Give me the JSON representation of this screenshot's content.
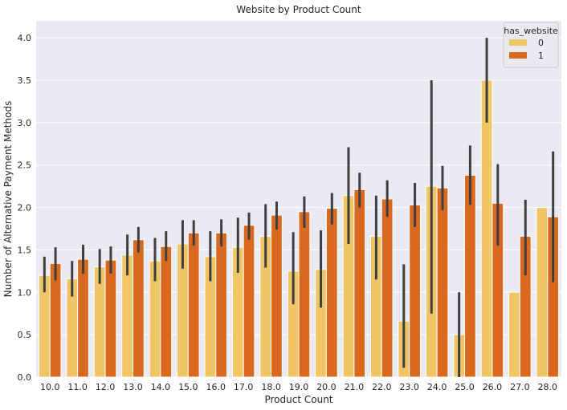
{
  "chart_data": {
    "type": "bar",
    "title": "Website by Product Count",
    "xlabel": "Product Count",
    "ylabel": "Number of Alternative Payment Methods",
    "ylim": [
      0,
      4.2
    ],
    "yticks": [
      "0.0",
      "0.5",
      "1.0",
      "1.5",
      "2.0",
      "2.5",
      "3.0",
      "3.5",
      "4.0"
    ],
    "grid": true,
    "categories": [
      "10.0",
      "11.0",
      "12.0",
      "13.0",
      "14.0",
      "15.0",
      "16.0",
      "17.0",
      "18.0",
      "19.0",
      "20.0",
      "21.0",
      "22.0",
      "23.0",
      "24.0",
      "25.0",
      "26.0",
      "27.0",
      "28.0"
    ],
    "legend": {
      "title": "has_website",
      "placement": "top-right"
    },
    "series": [
      {
        "name": "0",
        "color": "#f0c566",
        "values": [
          1.2,
          1.16,
          1.3,
          1.44,
          1.37,
          1.57,
          1.42,
          1.53,
          1.66,
          1.25,
          1.27,
          2.14,
          1.66,
          0.66,
          2.25,
          0.5,
          3.5,
          1.0,
          2.0
        ],
        "ci_low": [
          1.0,
          0.95,
          1.1,
          1.2,
          1.13,
          1.28,
          1.13,
          1.23,
          1.29,
          0.86,
          0.82,
          1.57,
          1.15,
          0.11,
          0.75,
          0.0,
          3.0,
          null,
          null
        ],
        "ci_high": [
          1.42,
          1.37,
          1.51,
          1.68,
          1.64,
          1.85,
          1.72,
          1.88,
          2.04,
          1.71,
          1.73,
          2.71,
          2.14,
          1.33,
          3.5,
          1.0,
          4.0,
          null,
          null
        ]
      },
      {
        "name": "1",
        "color": "#d9691e",
        "values": [
          1.34,
          1.39,
          1.38,
          1.62,
          1.54,
          1.7,
          1.7,
          1.79,
          1.91,
          1.95,
          1.99,
          2.21,
          2.1,
          2.03,
          2.23,
          2.38,
          2.05,
          1.66,
          1.89
        ],
        "ci_low": [
          1.14,
          1.22,
          1.22,
          1.47,
          1.37,
          1.55,
          1.54,
          1.62,
          1.74,
          1.76,
          1.8,
          2.0,
          1.89,
          1.77,
          1.97,
          2.03,
          1.55,
          1.2,
          1.12
        ],
        "ci_high": [
          1.53,
          1.56,
          1.54,
          1.77,
          1.72,
          1.85,
          1.86,
          1.94,
          2.07,
          2.13,
          2.17,
          2.41,
          2.32,
          2.29,
          2.49,
          2.73,
          2.51,
          2.09,
          2.66
        ]
      }
    ]
  }
}
